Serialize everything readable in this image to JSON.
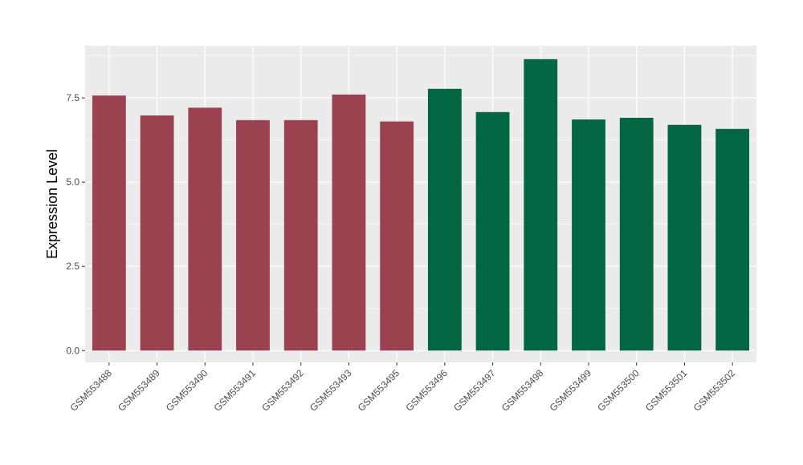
{
  "chart_data": {
    "type": "bar",
    "title": "",
    "xlabel": "",
    "ylabel": "Expression Level",
    "ylim": [
      -0.35,
      9.05
    ],
    "yticks": [
      0.0,
      2.5,
      5.0,
      7.5
    ],
    "ytick_labels": [
      "0.0",
      "2.5",
      "5.0",
      "7.5"
    ],
    "grid": true,
    "legend": "none",
    "categories": [
      "GSM553488",
      "GSM553489",
      "GSM553490",
      "GSM553491",
      "GSM553492",
      "GSM553493",
      "GSM553495",
      "GSM553496",
      "GSM553497",
      "GSM553498",
      "GSM553499",
      "GSM553500",
      "GSM553501",
      "GSM553502"
    ],
    "values": [
      7.57,
      6.98,
      7.21,
      6.84,
      6.84,
      7.6,
      6.8,
      7.77,
      7.08,
      8.65,
      6.86,
      6.91,
      6.7,
      6.58
    ],
    "bar_colors": [
      "#9a4250",
      "#9a4250",
      "#9a4250",
      "#9a4250",
      "#9a4250",
      "#9a4250",
      "#9a4250",
      "#036642",
      "#036642",
      "#036642",
      "#036642",
      "#036642",
      "#036642",
      "#036642"
    ],
    "panel_background": "#ebebeb",
    "grid_color": "#ffffff"
  }
}
